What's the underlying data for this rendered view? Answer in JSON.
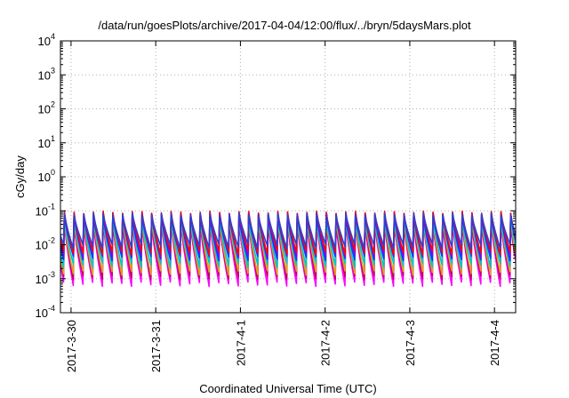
{
  "chart_data": {
    "type": "line",
    "title": "/data/run/goesPlots/archive/2017-04-04/12:00/flux/../bryn/5daysMars.plot",
    "xlabel": "Coordinated Universal Time (UTC)",
    "ylabel": "cGy/day",
    "yscale": "log",
    "ylim": [
      0.0001,
      10000
    ],
    "xlim": [
      "2017-03-29T21:00",
      "2017-04-04T06:00"
    ],
    "grid": true,
    "x_ticks": [
      "2017-3-30",
      "2017-3-31",
      "2017-4-1",
      "2017-4-2",
      "2017-4-3",
      "2017-4-4"
    ],
    "y_ticks": [
      {
        "base": "10",
        "exp": "-4"
      },
      {
        "base": "10",
        "exp": "-3"
      },
      {
        "base": "10",
        "exp": "-2"
      },
      {
        "base": "10",
        "exp": "-1"
      },
      {
        "base": "10",
        "exp": "0"
      },
      {
        "base": "10",
        "exp": "1"
      },
      {
        "base": "10",
        "exp": "2"
      },
      {
        "base": "10",
        "exp": "3"
      },
      {
        "base": "10",
        "exp": "4"
      }
    ],
    "cycle_hours": 2.75,
    "series": [
      {
        "color": "#ff00ff",
        "peak": 0.045,
        "trough": 0.0007
      },
      {
        "color": "#c00060",
        "peak": 0.05,
        "trough": 0.0011
      },
      {
        "color": "#e0a020",
        "peak": 0.055,
        "trough": 0.0015
      },
      {
        "color": "#00c8c8",
        "peak": 0.06,
        "trough": 0.0025
      },
      {
        "color": "#0040ff",
        "peak": 0.075,
        "trough": 0.004
      },
      {
        "color": "#8000ff",
        "peak": 0.085,
        "trough": 0.005
      },
      {
        "color": "#ff0000",
        "peak": 0.09,
        "trough": 0.006
      },
      {
        "color": "#3040d0",
        "peak": 0.08,
        "trough": 0.009
      }
    ]
  }
}
